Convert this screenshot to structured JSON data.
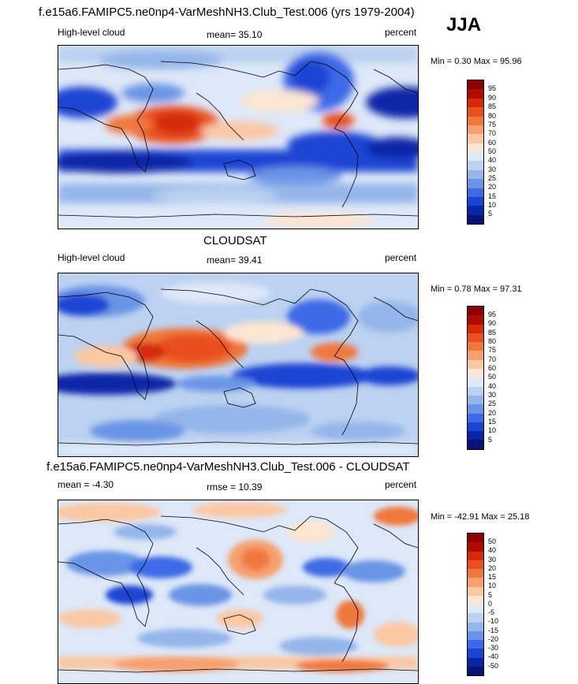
{
  "season": "JJA",
  "panels": [
    {
      "id": "model",
      "title": "f.e15a6.FAMIPC5.ne0np4-VarMeshNH3.Club_Test.006 (yrs 1979-2004)",
      "left_label": "High-level cloud",
      "center_label": "mean=  35.10",
      "right_label": "percent",
      "minmax": "Min =   0.30 Max =  95.96",
      "colorbar_ticks": [
        "95",
        "90",
        "85",
        "80",
        "75",
        "70",
        "60",
        "50",
        "40",
        "30",
        "25",
        "20",
        "15",
        "10",
        "5"
      ],
      "colorbar_colors": [
        "#8c0000",
        "#b30a00",
        "#d42a0a",
        "#e8501e",
        "#f0783c",
        "#f6a070",
        "#fbc8a4",
        "#fde6d2",
        "#dde8f8",
        "#bcd2f0",
        "#94b6ea",
        "#6b94e6",
        "#3d6ae6",
        "#1a44d4",
        "#0a26a8",
        "#06147a"
      ]
    },
    {
      "id": "obs",
      "title": "CLOUDSAT",
      "left_label": "High-level cloud",
      "center_label": "mean=  39.41",
      "right_label": "percent",
      "minmax": "Min =   0.78 Max =  97.31",
      "colorbar_ticks": [
        "95",
        "90",
        "85",
        "80",
        "75",
        "70",
        "60",
        "50",
        "40",
        "30",
        "25",
        "20",
        "15",
        "10",
        "5"
      ],
      "colorbar_colors": [
        "#8c0000",
        "#b30a00",
        "#d42a0a",
        "#e8501e",
        "#f0783c",
        "#f6a070",
        "#fbc8a4",
        "#fde6d2",
        "#dde8f8",
        "#bcd2f0",
        "#94b6ea",
        "#6b94e6",
        "#3d6ae6",
        "#1a44d4",
        "#0a26a8",
        "#06147a"
      ]
    },
    {
      "id": "diff",
      "title": "f.e15a6.FAMIPC5.ne0np4-VarMeshNH3.Club_Test.006 - CLOUDSAT",
      "left_label": "mean =  -4.30",
      "center_label": "rmse =  10.39",
      "right_label": "percent",
      "minmax": "Min = -42.91 Max =  25.18",
      "colorbar_ticks": [
        "50",
        "40",
        "30",
        "20",
        "15",
        "10",
        "5",
        "0",
        "-5",
        "-10",
        "-15",
        "-20",
        "-30",
        "-40",
        "-50"
      ],
      "colorbar_colors": [
        "#8c0000",
        "#b30a00",
        "#d42a0a",
        "#e8501e",
        "#f0783c",
        "#f6a070",
        "#fbc8a4",
        "#fde6d2",
        "#dde8f8",
        "#bcd2f0",
        "#94b6ea",
        "#6b94e6",
        "#3d6ae6",
        "#1a44d4",
        "#0a26a8",
        "#06147a"
      ]
    }
  ]
}
